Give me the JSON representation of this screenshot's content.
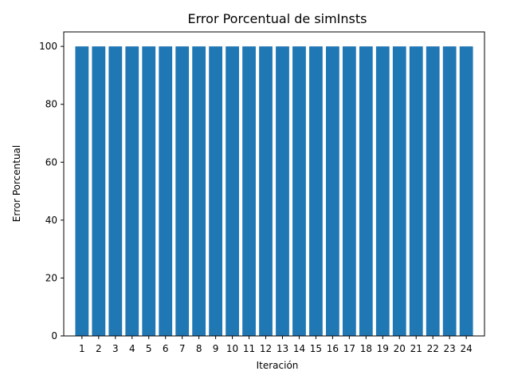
{
  "chart_data": {
    "type": "bar",
    "title": "Error Porcentual de simInsts",
    "xlabel": "Iteración",
    "ylabel": "Error Porcentual",
    "categories": [
      "1",
      "2",
      "3",
      "4",
      "5",
      "6",
      "7",
      "8",
      "9",
      "10",
      "11",
      "12",
      "13",
      "14",
      "15",
      "16",
      "17",
      "18",
      "19",
      "20",
      "21",
      "22",
      "23",
      "24"
    ],
    "values": [
      100,
      100,
      100,
      100,
      100,
      100,
      100,
      100,
      100,
      100,
      100,
      100,
      100,
      100,
      100,
      100,
      100,
      100,
      100,
      100,
      100,
      100,
      100,
      100
    ],
    "ylim": [
      0,
      105
    ],
    "yticks": [
      0,
      20,
      40,
      60,
      80,
      100
    ],
    "grid": false,
    "bar_color": "#1f77b4"
  }
}
